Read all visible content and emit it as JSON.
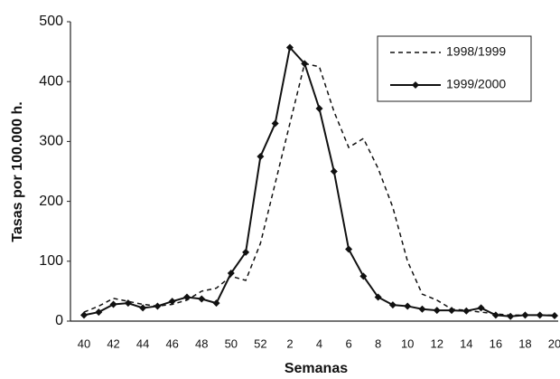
{
  "chart_data": {
    "type": "line",
    "x_label": "Semanas",
    "y_label": "Tasas por 100.000 h.",
    "categories": [
      "40",
      null,
      "42",
      null,
      "44",
      null,
      "46",
      null,
      "48",
      null,
      "50",
      null,
      "52",
      null,
      "2",
      null,
      "4",
      null,
      "6",
      null,
      "8",
      null,
      "10",
      null,
      "12",
      null,
      "14",
      null,
      "16",
      null,
      "18",
      null,
      "20"
    ],
    "series": [
      {
        "name": "1998/1999",
        "color": "#111111",
        "dashed": true,
        "marker": null,
        "values": [
          15,
          25,
          38,
          33,
          28,
          25,
          28,
          35,
          50,
          55,
          75,
          68,
          130,
          230,
          330,
          430,
          425,
          350,
          290,
          305,
          255,
          190,
          100,
          45,
          35,
          20,
          18,
          15,
          12,
          10,
          10,
          10,
          10
        ]
      },
      {
        "name": "1999/2000",
        "color": "#111111",
        "dashed": false,
        "marker": "diamond",
        "values": [
          10,
          15,
          28,
          30,
          22,
          25,
          33,
          40,
          37,
          30,
          80,
          115,
          275,
          330,
          457,
          430,
          355,
          250,
          120,
          75,
          40,
          27,
          25,
          20,
          18,
          18,
          17,
          22,
          10,
          8,
          10,
          10,
          9
        ]
      }
    ],
    "ylim": [
      0,
      500
    ],
    "yticks": [
      0,
      100,
      200,
      300,
      400,
      500
    ],
    "grid": false,
    "legend": "upper right"
  }
}
